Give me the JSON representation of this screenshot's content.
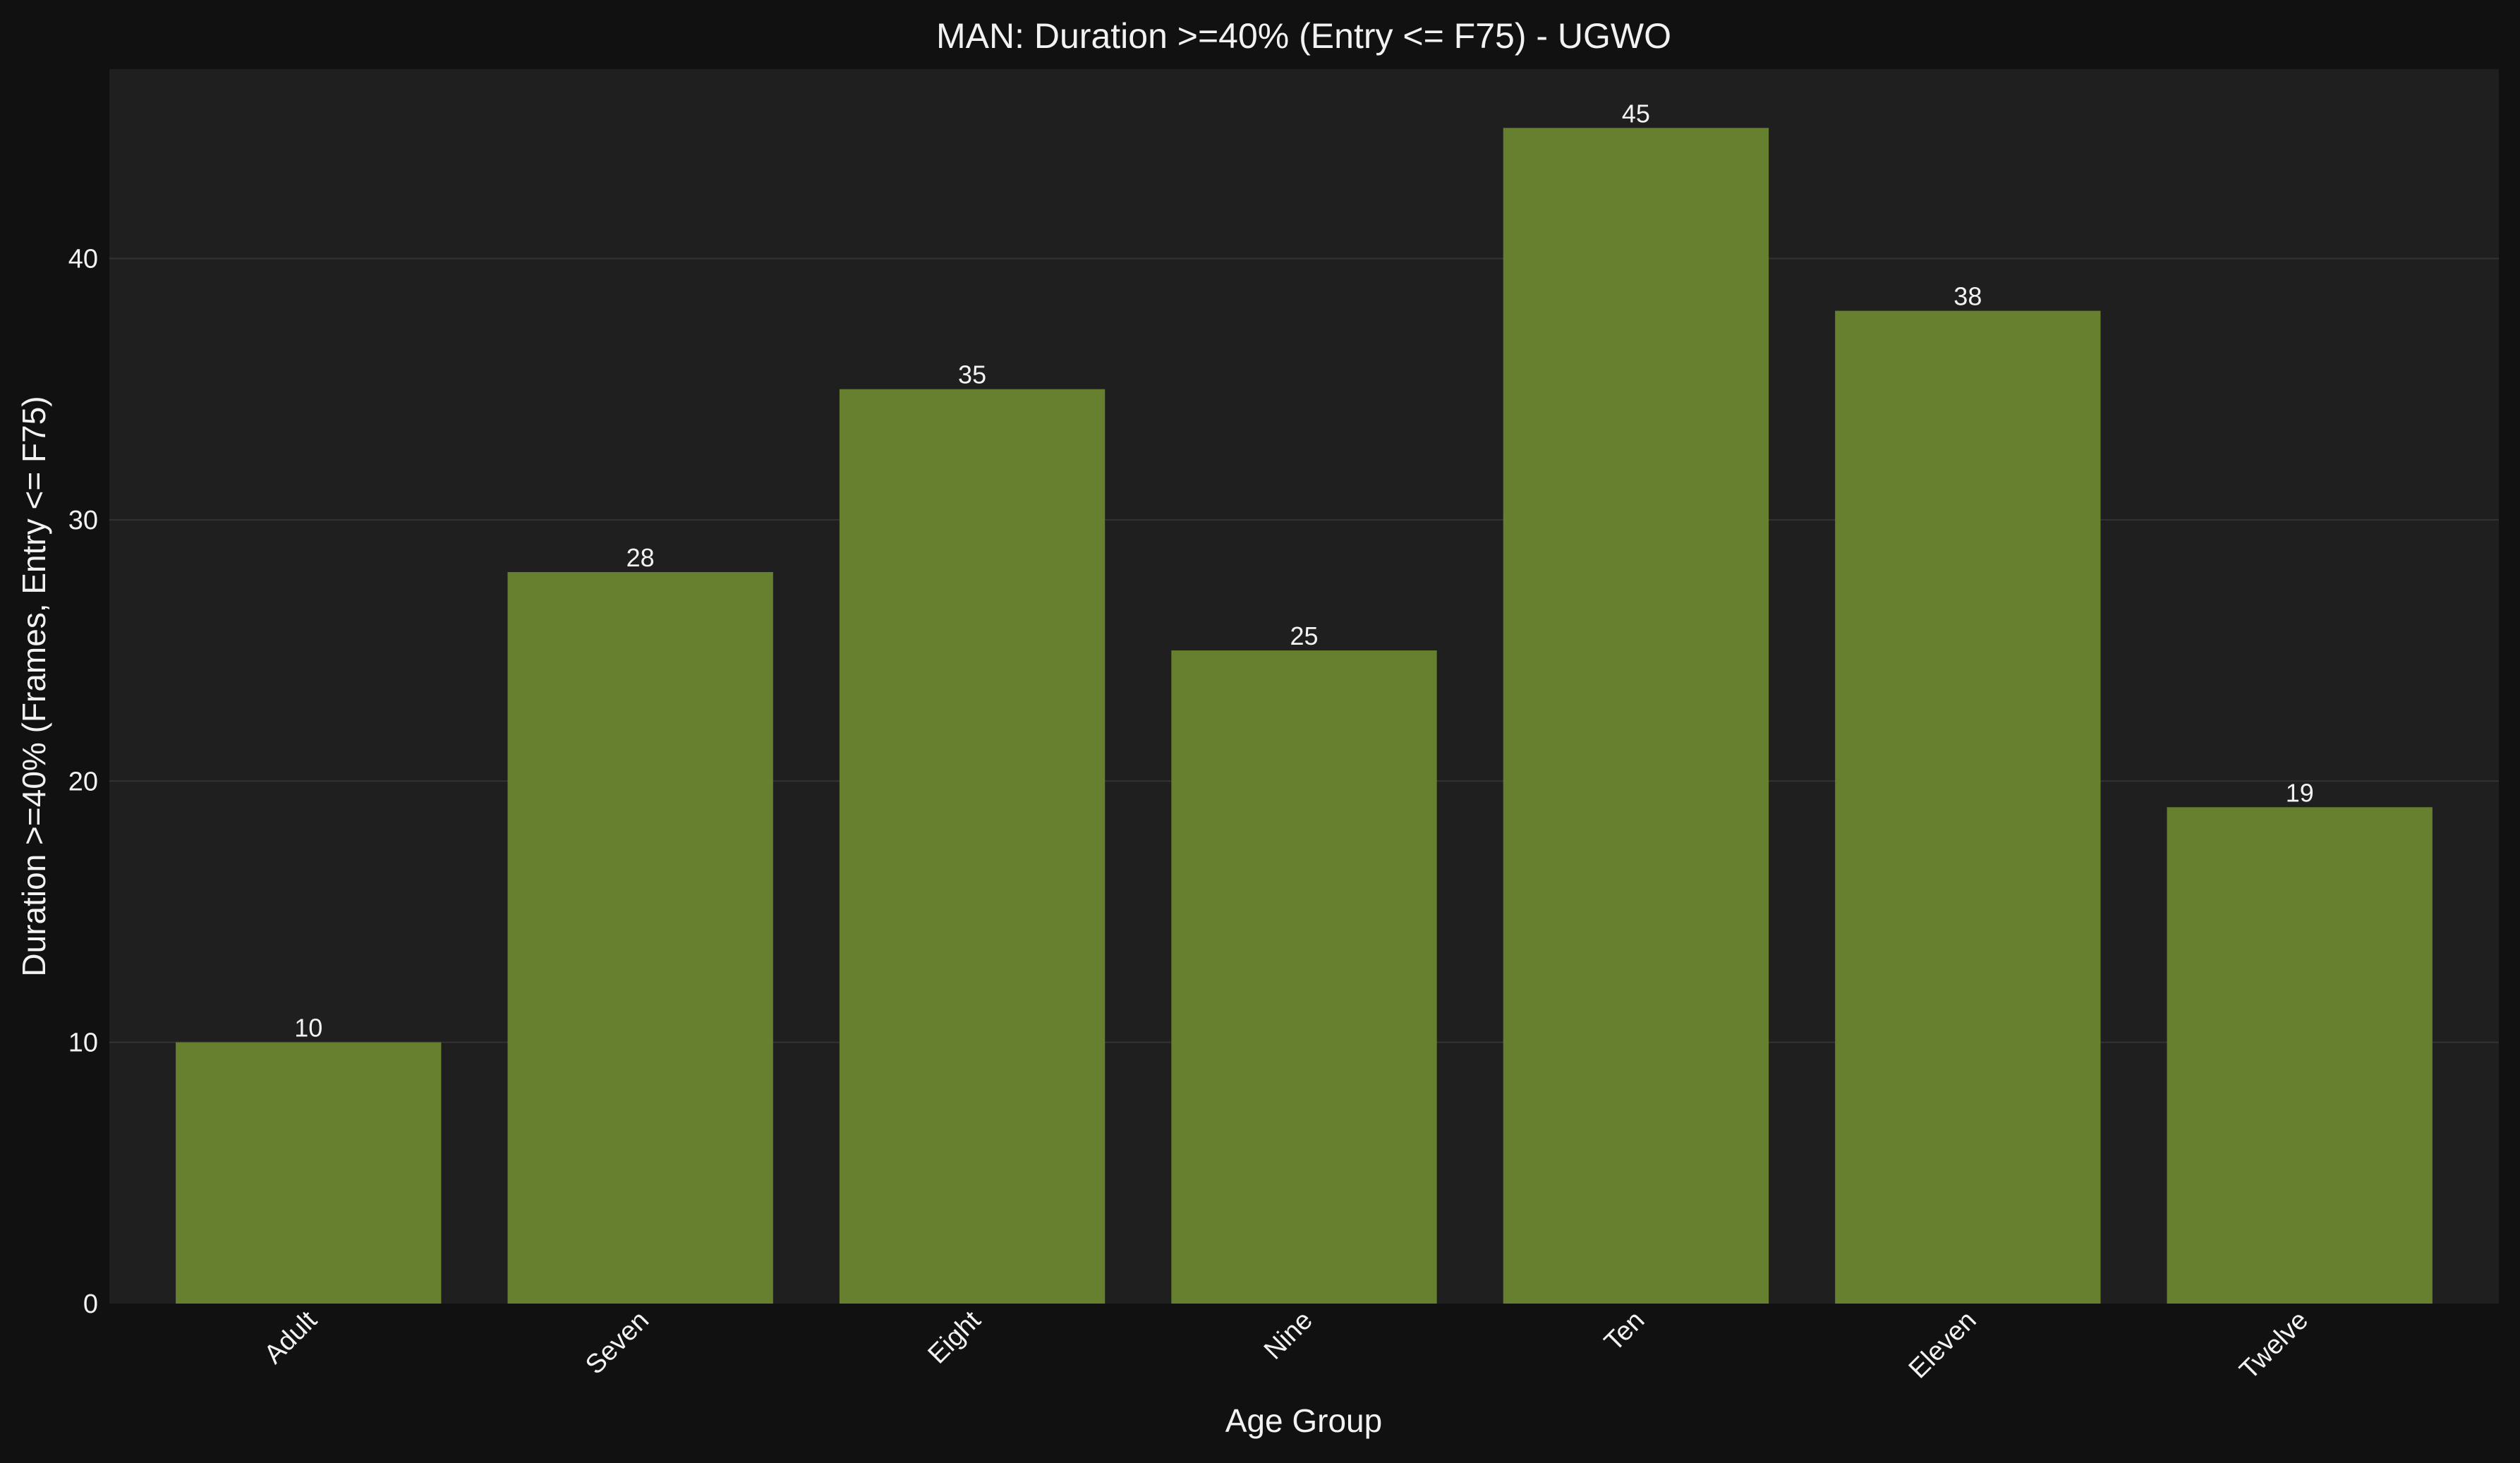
{
  "chart_data": {
    "type": "bar",
    "title": "MAN: Duration >=40% (Entry <= F75) - UGWO",
    "xlabel": "Age Group",
    "ylabel": "Duration >=40% (Frames, Entry <= F75)",
    "categories": [
      "Adult",
      "Seven",
      "Eight",
      "Nine",
      "Ten",
      "Eleven",
      "Twelve"
    ],
    "values": [
      10,
      28,
      35,
      25,
      45,
      38,
      19
    ],
    "ylim": [
      0,
      47.25
    ],
    "yticks": [
      0,
      10,
      20,
      30,
      40
    ],
    "grid": true,
    "data_labels": true,
    "colors": {
      "bar": "#66802f",
      "figure_background": "#111111",
      "plot_background": "#1f1f1f",
      "grid": "#333333",
      "text": "#f2f2f2"
    }
  }
}
